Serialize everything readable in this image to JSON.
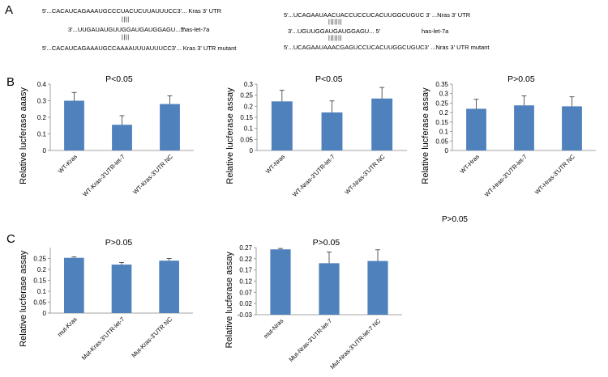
{
  "panels": {
    "a": "A",
    "b": "B",
    "c": "C"
  },
  "sequences": {
    "kras_utr": "5'...CACAUCAGAAAUGCCCUACUCUUAUUUCC3'...  Kras  3' UTR",
    "kras_let": "3'...UUGAUAUGUUGGAUGAUGGAGU...5'",
    "kras_let_label": "has-let-7a",
    "kras_pairs": "||||",
    "kras_mut": "5'...CACAUCAGAAAUGCCAAAAUUUAUUUCC3'...  Kras  3' UTR mutant",
    "nras_utr": "5'...UCAGAAUAACUACCUCCUCACUUGGCUGUC 3'  ...Nras 3' UTR",
    "nras_let": "3'...UGUUGGAUGAUGGAGU...  5'",
    "nras_let_label": "has-let-7a",
    "nras_pairs": "|||||||",
    "nras_mut": "5'...UCAGAAUAAACGAGUCCUCACUUGGCUGUC3'  ...Nras 3' UTR mutant"
  },
  "extra_annotation": "P>0.05",
  "colors": {
    "bar": "#4f81bd",
    "axis": "#888888"
  },
  "chart_data": [
    {
      "type": "bar",
      "title": "P<0.05",
      "ylabel": "Relative lucferase aaasy",
      "categories": [
        "WT-Kras",
        "WT-Kras-3'UTR-let-7",
        "WT-Kras-3'UTR NC"
      ],
      "values": [
        0.3,
        0.155,
        0.28
      ],
      "errors": [
        0.05,
        0.055,
        0.05
      ],
      "ylim": [
        0,
        0.4
      ],
      "yticks": [
        "0",
        "0.1",
        "0.2",
        "0.3",
        "0.4"
      ]
    },
    {
      "type": "bar",
      "title": "P<0.05",
      "ylabel": "Relative lucferase assay",
      "categories": [
        "WT-Nras",
        "WT-Nras-3'UTR-let-7",
        "WT-Nras-3'UTR NC"
      ],
      "values": [
        0.222,
        0.172,
        0.235
      ],
      "errors": [
        0.05,
        0.052,
        0.05
      ],
      "ylim": [
        0,
        0.3
      ],
      "yticks": [
        "0",
        "0.05",
        "0.1",
        "0.15",
        "0.2",
        "0.25",
        "0.3"
      ]
    },
    {
      "type": "bar",
      "title": "P>0.05",
      "ylabel": "Relative lucferase assay",
      "categories": [
        "WT-Hras",
        "WT-Hras-3'UTR-let-7",
        "WT-Hras-3'UTR NC"
      ],
      "values": [
        0.22,
        0.238,
        0.233
      ],
      "errors": [
        0.05,
        0.05,
        0.05
      ],
      "ylim": [
        0,
        0.35
      ],
      "yticks": [
        "0",
        "0.05",
        "0.1",
        "0.15",
        "0.2",
        "0.25",
        "0.3",
        "0.35"
      ]
    },
    {
      "type": "bar",
      "title": "P>0.05",
      "ylabel": "Relative lucferase assay",
      "categories": [
        "mut-Kras",
        "Mut-Kras-3'UTR-let-7",
        "Mut-Kras-3'UTR NC"
      ],
      "values": [
        0.253,
        0.222,
        0.24
      ],
      "errors": [
        0.004,
        0.01,
        0.01
      ],
      "ylim": [
        0,
        0.3
      ],
      "yticks": [
        "0",
        "0.05",
        "0.1",
        "0.15",
        "0.2",
        "0.25"
      ]
    },
    {
      "type": "bar",
      "title": "P>0.05",
      "ylabel": "Relative lucferase assay",
      "categories": [
        "mut-Nras",
        "Mut-Nras-3'UTR-let-7",
        "Mut-Nras-3'UTR-let-7 NC"
      ],
      "values": [
        0.262,
        0.2,
        0.21
      ],
      "errors": [
        0.004,
        0.05,
        0.05
      ],
      "ylim": [
        -0.03,
        0.27
      ],
      "yticks": [
        "-0.03",
        "0.02",
        "0.07",
        "0.12",
        "0.17",
        "0.22",
        "0.27"
      ]
    }
  ]
}
